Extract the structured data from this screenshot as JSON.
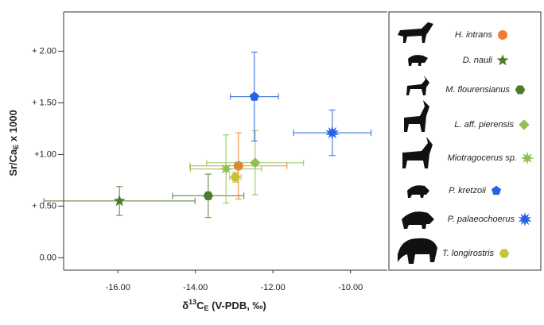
{
  "chart_data": {
    "type": "scatter",
    "x_label": {
      "delta": "δ",
      "sup": "13",
      "main": "C",
      "sub": "E",
      "rest": " (V-PDB, ‰)"
    },
    "y_label": {
      "main": "Sr/Ca",
      "sub": "E",
      "rest": " x 1000"
    },
    "xlim": [
      -17.4,
      -9.05
    ],
    "ylim": [
      -0.12,
      2.38
    ],
    "xticks": [
      {
        "value": -16,
        "label": "-16.00"
      },
      {
        "value": -14,
        "label": "-14.00"
      },
      {
        "value": -12,
        "label": "-12.00"
      },
      {
        "value": -10,
        "label": "-10.00"
      }
    ],
    "yticks": [
      {
        "value": 0,
        "label": "0.00"
      },
      {
        "value": 0.5,
        "label": "+ 0.50"
      },
      {
        "value": 1,
        "label": "+1.00"
      },
      {
        "value": 1.5,
        "label": "+ 1.50"
      },
      {
        "value": 2,
        "label": "+ 2.00"
      }
    ],
    "series": [
      {
        "name": "H. intrans",
        "color": "#ee7d31",
        "marker": "circle",
        "x": [
          -12.89
        ],
        "values": [
          0.89
        ],
        "xerr": [
          1.25
        ],
        "yerr": [
          0.32
        ]
      },
      {
        "name": "D. nauli",
        "color": "#4e7a2e",
        "marker": "star5",
        "x": [
          -15.96
        ],
        "values": [
          0.55
        ],
        "xerr": [
          1.95
        ],
        "yerr": [
          0.14
        ]
      },
      {
        "name": "M. flourensianus",
        "color": "#4e7a2e",
        "marker": "hexagon",
        "x": [
          -13.67
        ],
        "values": [
          0.6
        ],
        "xerr": [
          0.92
        ],
        "yerr": [
          0.21
        ]
      },
      {
        "name": "L. aff. pierensis",
        "color": "#8fc050",
        "marker": "diamond",
        "x": [
          -12.46
        ],
        "values": [
          0.92
        ],
        "xerr": [
          1.25
        ],
        "yerr": [
          0.31
        ]
      },
      {
        "name": "Miotragocerus sp.",
        "color": "#8fc050",
        "marker": "star8",
        "x": [
          -13.21
        ],
        "values": [
          0.86
        ],
        "xerr": [
          0.92
        ],
        "yerr": [
          0.33
        ]
      },
      {
        "name": "P. kretzoii",
        "color": "#2563e0",
        "marker": "pentagon",
        "x": [
          -12.48
        ],
        "values": [
          1.56
        ],
        "xerr": [
          0.62
        ],
        "yerr": [
          0.43
        ]
      },
      {
        "name": "P. palaeochoerus",
        "color": "#2563e0",
        "marker": "burst",
        "x": [
          -10.47
        ],
        "values": [
          1.21
        ],
        "xerr": [
          1.0
        ],
        "yerr": [
          0.22
        ]
      },
      {
        "name": "T. longirostris",
        "color": "#c8c23a",
        "marker": "hexagon",
        "x": [
          -12.97
        ],
        "values": [
          0.78
        ],
        "xerr": [
          0.15
        ],
        "yerr": [
          0.05
        ]
      }
    ]
  }
}
